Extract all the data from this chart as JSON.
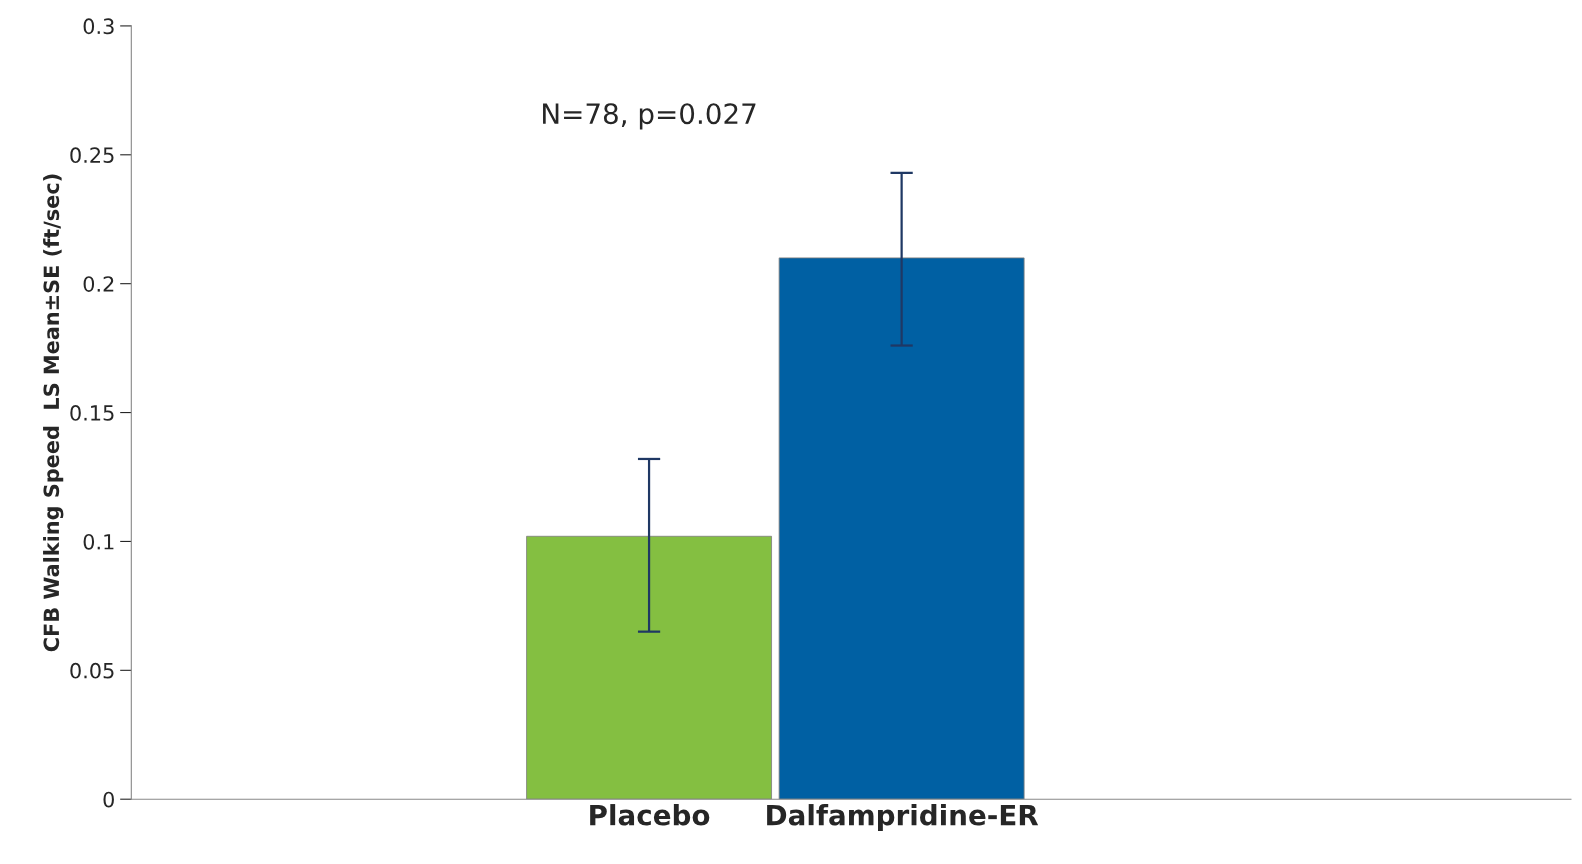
{
  "chart_data": {
    "type": "bar",
    "ylabel": "CFB Walking Speed  LS Mean±SE (ft/sec)",
    "categories": [
      "Placebo",
      "Dalfampridine-ER"
    ],
    "values": [
      0.102,
      0.21
    ],
    "colors": [
      "#84bf41",
      "#0060a3"
    ],
    "errors": [
      [
        0.065,
        0.132
      ],
      [
        0.176,
        0.243
      ]
    ],
    "ylim": [
      0,
      0.3
    ],
    "yticks": [
      0,
      0.05,
      0.1,
      0.15,
      0.2,
      0.25,
      0.3
    ],
    "grid": false,
    "annotations": [
      "N=78, p=0.027"
    ]
  }
}
